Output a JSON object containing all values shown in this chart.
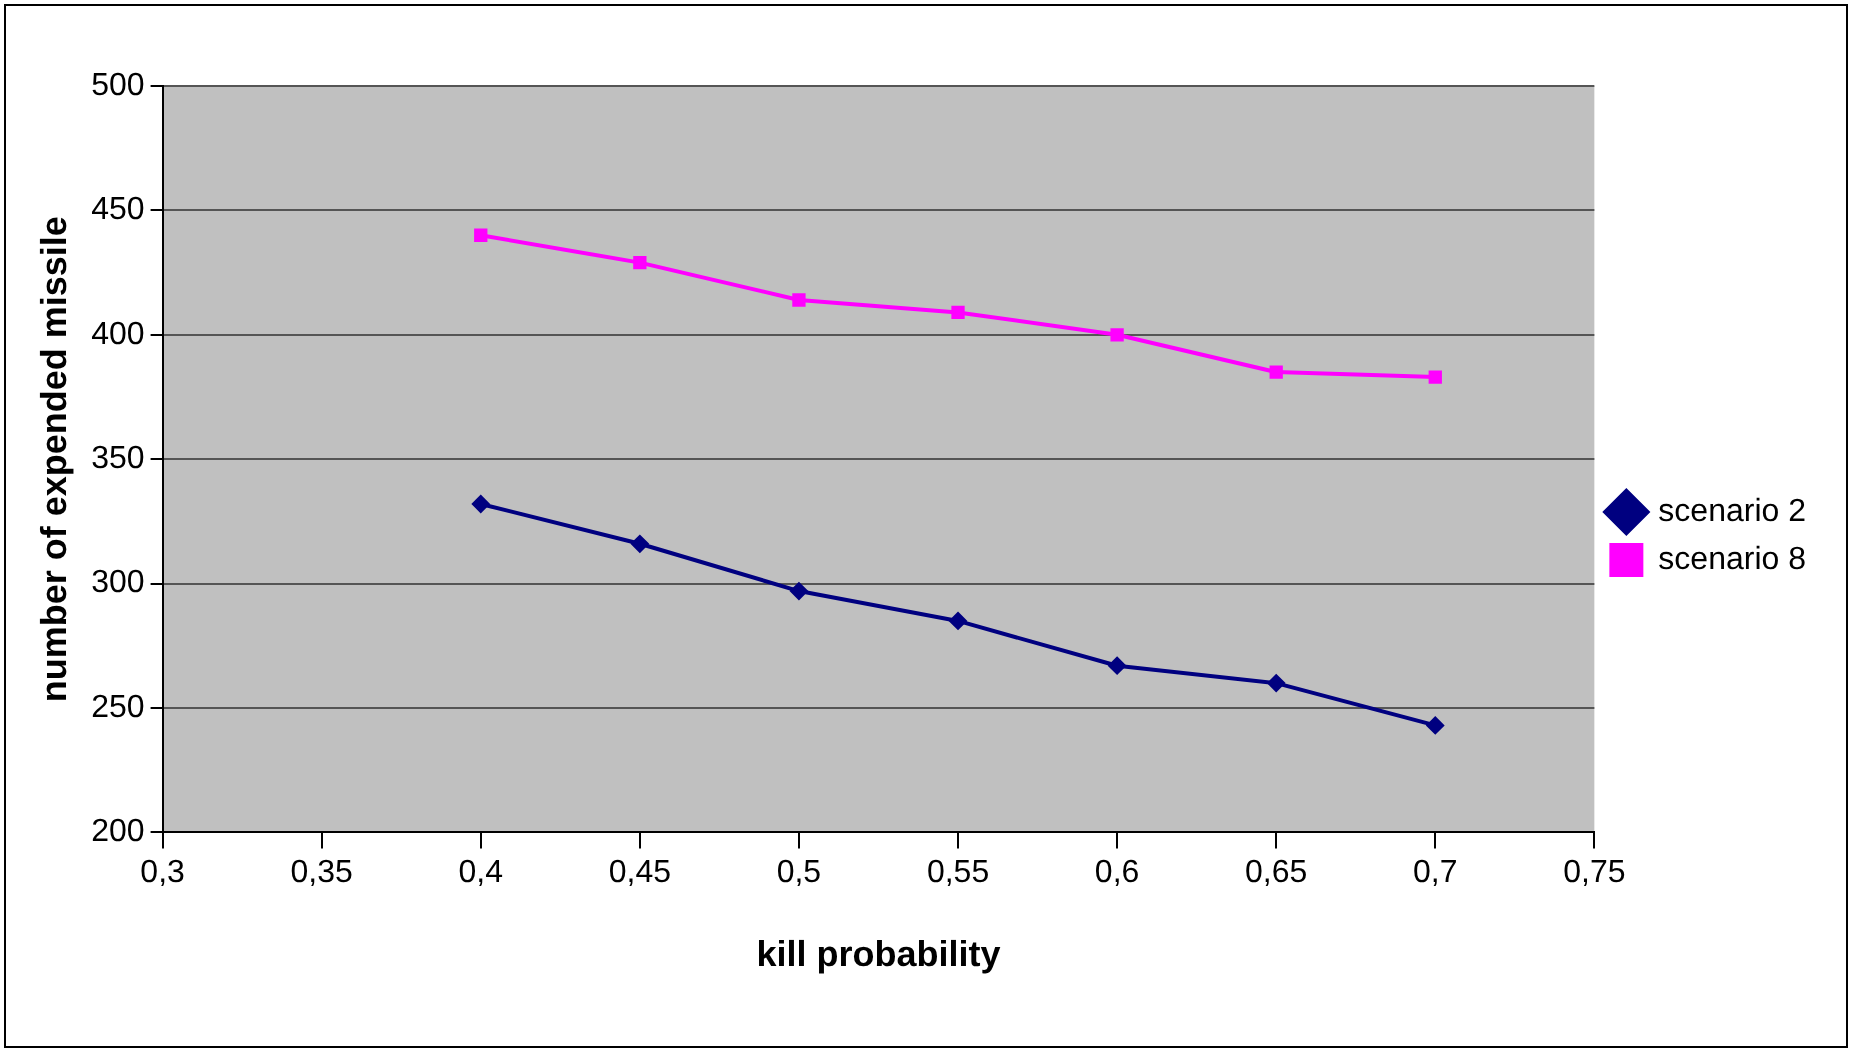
{
  "chart_data": {
    "type": "line",
    "xlabel": "kill probability",
    "ylabel": "number of expended missile",
    "x": [
      0.4,
      0.45,
      0.5,
      0.55,
      0.6,
      0.65,
      0.7
    ],
    "series": [
      {
        "name": "scenario 2",
        "color": "#000080",
        "marker": "diamond",
        "values": [
          332,
          316,
          297,
          285,
          267,
          260,
          243
        ]
      },
      {
        "name": "scenario 8",
        "color": "#ff00ff",
        "marker": "square",
        "values": [
          440,
          429,
          414,
          409,
          400,
          385,
          383
        ]
      }
    ],
    "xlim": [
      0.3,
      0.75
    ],
    "xticks": [
      {
        "value": 0.3,
        "label": "0,3"
      },
      {
        "value": 0.35,
        "label": "0,35"
      },
      {
        "value": 0.4,
        "label": "0,4"
      },
      {
        "value": 0.45,
        "label": "0,45"
      },
      {
        "value": 0.5,
        "label": "0,5"
      },
      {
        "value": 0.55,
        "label": "0,55"
      },
      {
        "value": 0.6,
        "label": "0,6"
      },
      {
        "value": 0.65,
        "label": "0,65"
      },
      {
        "value": 0.7,
        "label": "0,7"
      },
      {
        "value": 0.75,
        "label": "0,75"
      }
    ],
    "ylim": [
      200,
      500
    ],
    "yticks": [
      200,
      250,
      300,
      350,
      400,
      450,
      500
    ],
    "grid": "y",
    "legend": "right"
  }
}
